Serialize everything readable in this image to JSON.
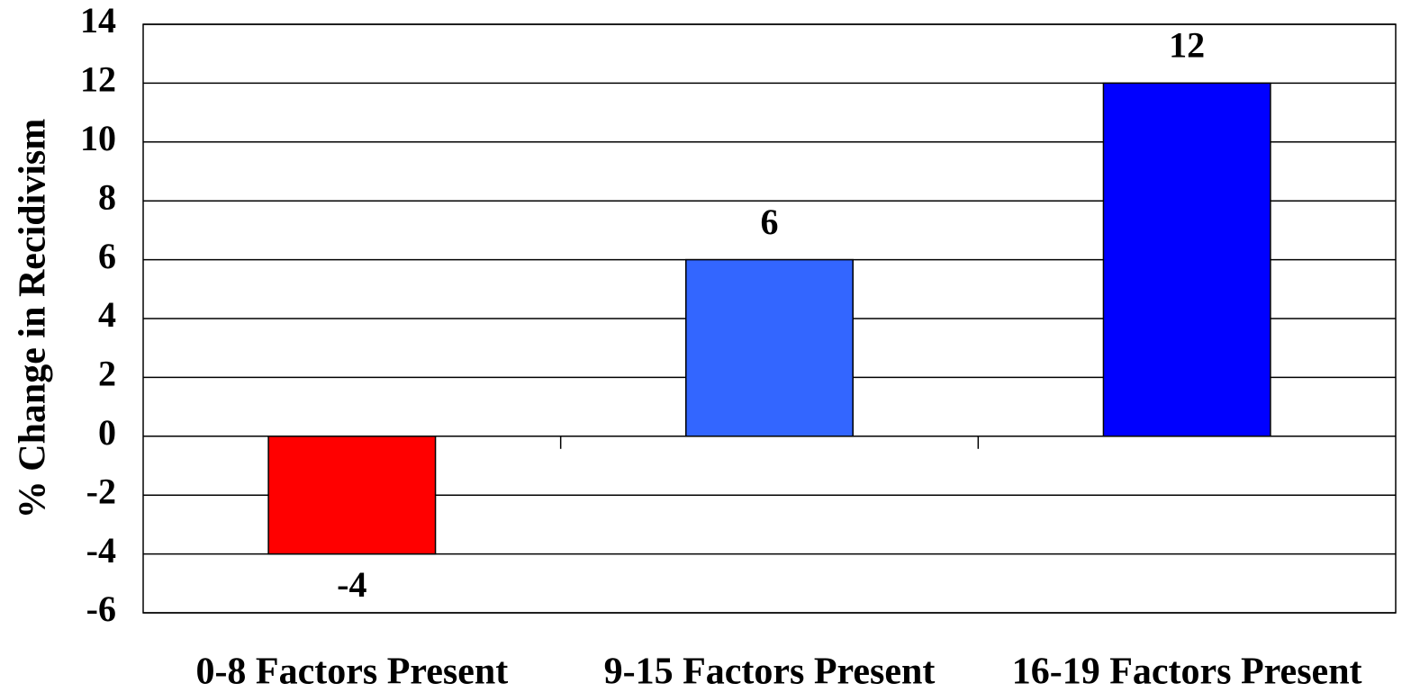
{
  "chart_data": {
    "type": "bar",
    "title": "",
    "xlabel": "",
    "ylabel": "% Change in Recidivism",
    "ylim": [
      -6,
      14
    ],
    "ytick_step": 2,
    "yticks": [
      "14",
      "12",
      "10",
      "8",
      "6",
      "4",
      "2",
      "0",
      "-2",
      "-4",
      "-6"
    ],
    "grid": true,
    "legend": "none",
    "categories": [
      "0-8 Factors Present",
      "9-15 Factors Present",
      "16-19 Factors Present"
    ],
    "values": [
      -4,
      6,
      12
    ],
    "data_labels": [
      "-4",
      "6",
      "12"
    ],
    "colors": [
      "#ff0000",
      "#3366ff",
      "#0000ff"
    ]
  }
}
